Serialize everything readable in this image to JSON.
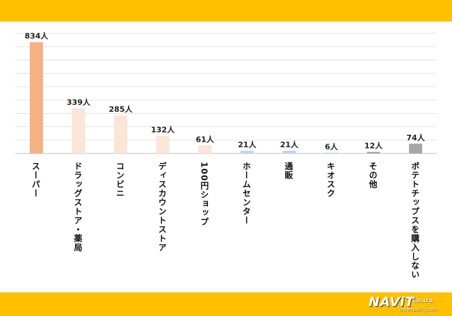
{
  "chart_data": {
    "type": "bar",
    "categories": [
      "スーパー",
      "ドラッグストア・薬局",
      "コンビニ",
      "ディスカウントストア",
      "100円ショップ",
      "ホームセンター",
      "通販",
      "キオスク",
      "その他",
      "ポテトチップスを購入しない"
    ],
    "values": [
      834,
      339,
      285,
      132,
      61,
      21,
      21,
      6,
      12,
      74
    ],
    "data_labels": [
      "834人",
      "339人",
      "285人",
      "132人",
      "61人",
      "21人",
      "21人",
      "6人",
      "12人",
      "74人"
    ],
    "colors": [
      "#F4B183",
      "#FBE5D6",
      "#FBE5D6",
      "#FBE5D6",
      "#FBE5D6",
      "#BDD7EE",
      "#BDD7EE",
      "#BDD7EE",
      "#A6A6A6",
      "#A6A6A6"
    ],
    "ylim": [
      0,
      900
    ],
    "grid": true,
    "title": "",
    "xlabel": "",
    "ylabel": ""
  },
  "branding": {
    "logo_text": "NAViT",
    "logo_suffix": "CO.,LTD.",
    "url": "www.navit-j.com"
  },
  "theme": {
    "band_color": "#FFC000"
  }
}
